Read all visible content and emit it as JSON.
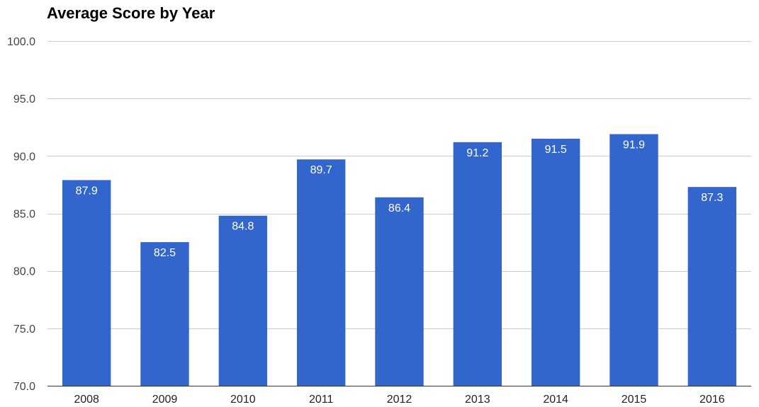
{
  "chart_data": {
    "type": "bar",
    "title": "Average Score by Year",
    "xlabel": "",
    "ylabel": "",
    "categories": [
      "2008",
      "2009",
      "2010",
      "2011",
      "2012",
      "2013",
      "2014",
      "2015",
      "2016"
    ],
    "values": [
      87.9,
      82.5,
      84.8,
      89.7,
      86.4,
      91.2,
      91.5,
      91.9,
      87.3
    ],
    "data_labels": [
      "87.9",
      "82.5",
      "84.8",
      "89.7",
      "86.4",
      "91.2",
      "91.5",
      "91.9",
      "87.3"
    ],
    "ylim": [
      70,
      100
    ],
    "yticks": [
      70,
      75,
      80,
      85,
      90,
      95,
      100
    ],
    "ytick_labels": [
      "70.0",
      "75.0",
      "80.0",
      "85.0",
      "90.0",
      "95.0",
      "100.0"
    ],
    "grid": true,
    "legend": "none",
    "bar_color": "#3366cc",
    "grid_color": "#cccccc"
  }
}
